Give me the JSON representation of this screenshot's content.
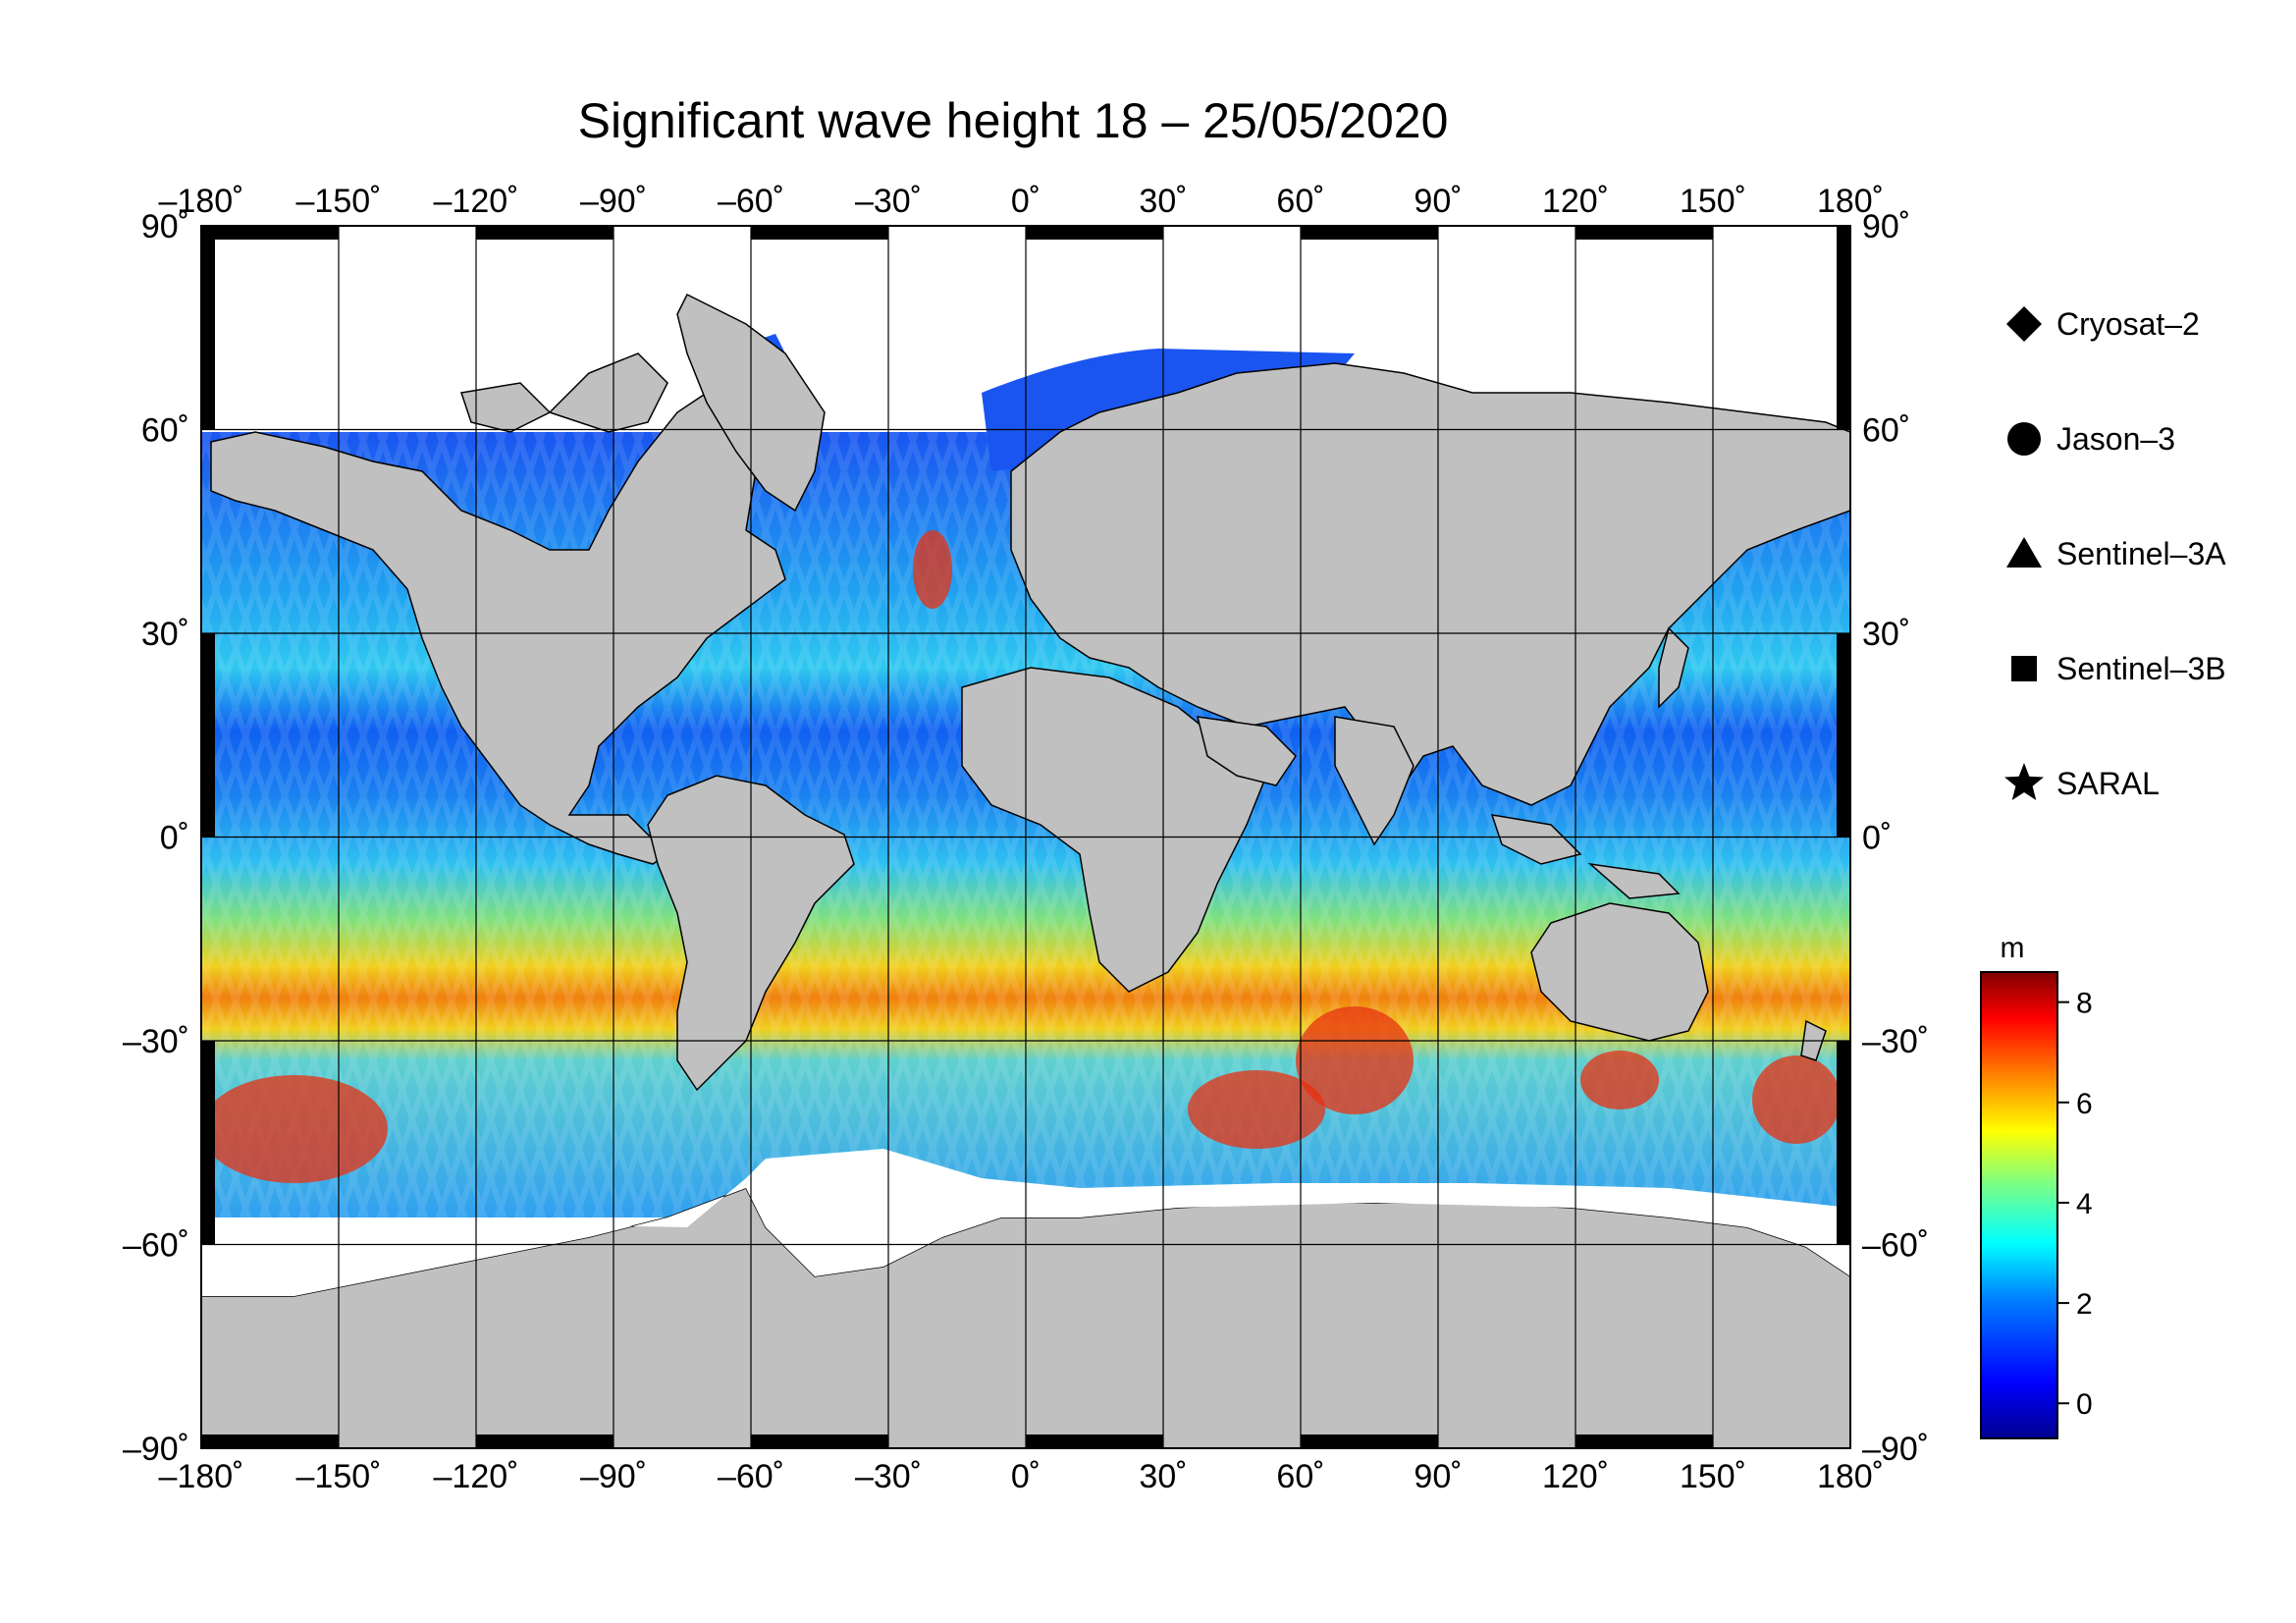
{
  "title": "Significant wave height 18 – 25/05/2020",
  "axes": {
    "lon_ticks": [
      {
        "value": -180,
        "label": "–180˚"
      },
      {
        "value": -150,
        "label": "–150˚"
      },
      {
        "value": -120,
        "label": "–120˚"
      },
      {
        "value": -90,
        "label": "–90˚"
      },
      {
        "value": -60,
        "label": "–60˚"
      },
      {
        "value": -30,
        "label": "–30˚"
      },
      {
        "value": 0,
        "label": "0˚"
      },
      {
        "value": 30,
        "label": "30˚"
      },
      {
        "value": 60,
        "label": "60˚"
      },
      {
        "value": 90,
        "label": "90˚"
      },
      {
        "value": 120,
        "label": "120˚"
      },
      {
        "value": 150,
        "label": "150˚"
      },
      {
        "value": 180,
        "label": "180˚"
      }
    ],
    "lat_ticks": [
      {
        "value": 90,
        "label": "90˚"
      },
      {
        "value": 60,
        "label": "60˚"
      },
      {
        "value": 30,
        "label": "30˚"
      },
      {
        "value": 0,
        "label": "0˚"
      },
      {
        "value": -30,
        "label": "–30˚"
      },
      {
        "value": -60,
        "label": "–60˚"
      },
      {
        "value": -90,
        "label": "–90˚"
      }
    ]
  },
  "legend": {
    "items": [
      {
        "label": "Cryosat–2",
        "symbol": "diamond"
      },
      {
        "label": "Jason–3",
        "symbol": "circle"
      },
      {
        "label": "Sentinel–3A",
        "symbol": "triangle"
      },
      {
        "label": "Sentinel–3B",
        "symbol": "square"
      },
      {
        "label": "SARAL",
        "symbol": "star"
      }
    ]
  },
  "colorbar": {
    "unit": "m",
    "ticks": [
      {
        "value": 0,
        "label": "0"
      },
      {
        "value": 2,
        "label": "2"
      },
      {
        "value": 4,
        "label": "4"
      },
      {
        "value": 6,
        "label": "6"
      },
      {
        "value": 8,
        "label": "8"
      }
    ],
    "range": [
      -0.7,
      8.6
    ],
    "colors": [
      "#00008f",
      "#0000ff",
      "#0080ff",
      "#00ffff",
      "#80ff80",
      "#ffff00",
      "#ff8000",
      "#ff0000",
      "#800000"
    ]
  },
  "colors": {
    "land": "#c0c0c0",
    "ice": "#ffffff",
    "low_wave": "#1040f0",
    "mid_wave": "#30c8f0",
    "high_wave": "#f02010"
  }
}
